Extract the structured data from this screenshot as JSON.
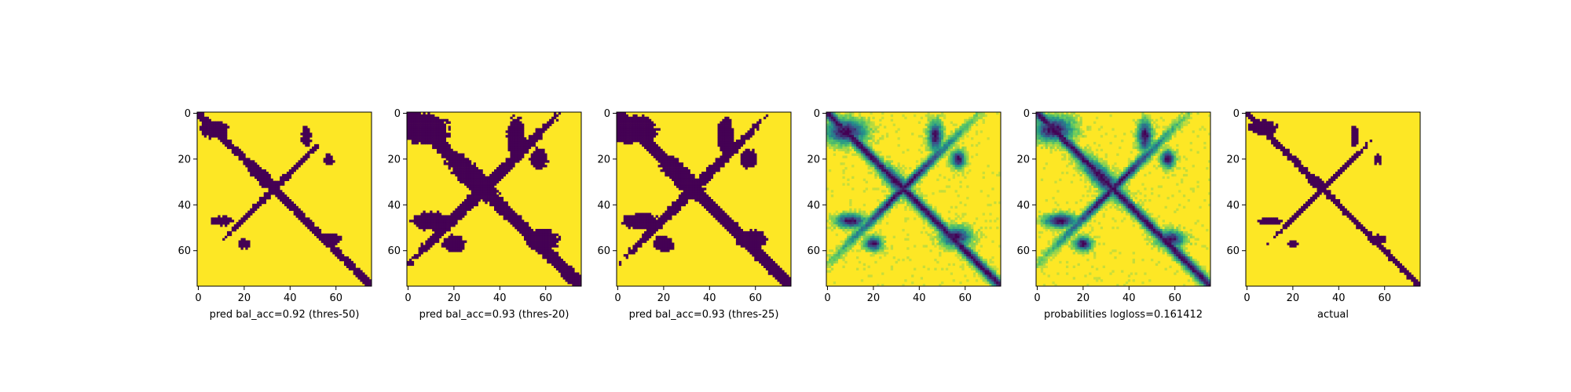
{
  "chart_data": [
    {
      "type": "heatmap",
      "xlabel": "pred bal_acc=0.92 (thres-50)",
      "matrix_size": 76,
      "xticks": [
        0,
        20,
        40,
        60
      ],
      "yticks": [
        0,
        20,
        40,
        60
      ],
      "value_range": [
        0,
        1
      ],
      "colormap": "viridis",
      "binary": true,
      "threshold": 0.5,
      "diagonal_bandwidth": 2.6,
      "clusters": [
        {
          "cx": 7,
          "cy": 7,
          "rx": 7,
          "ry": 4.5
        },
        {
          "cx": 28,
          "cy": 28,
          "rx": 12,
          "ry": 3.2,
          "angle": 45
        },
        {
          "cx": 10,
          "cy": 47,
          "rx": 5.5,
          "ry": 2.4
        },
        {
          "cx": 47,
          "cy": 10,
          "rx": 2.4,
          "ry": 5.5
        },
        {
          "cx": 58,
          "cy": 55,
          "rx": 5,
          "ry": 3
        },
        {
          "cx": 20,
          "cy": 57,
          "rx": 3,
          "ry": 2.5
        },
        {
          "cx": 57,
          "cy": 20,
          "rx": 2.5,
          "ry": 3
        }
      ],
      "noise_seed": 11
    },
    {
      "type": "heatmap",
      "xlabel": "pred bal_acc=0.93 (thres-20)",
      "matrix_size": 76,
      "xticks": [
        0,
        20,
        40,
        60
      ],
      "yticks": [
        0,
        20,
        40,
        60
      ],
      "value_range": [
        0,
        1
      ],
      "colormap": "viridis",
      "binary": true,
      "threshold": 0.2,
      "diagonal_bandwidth": 3.1,
      "clusters": [
        {
          "cx": 7,
          "cy": 7,
          "rx": 8,
          "ry": 5
        },
        {
          "cx": 28,
          "cy": 28,
          "rx": 13,
          "ry": 3.6,
          "angle": 45
        },
        {
          "cx": 10,
          "cy": 47,
          "rx": 6.5,
          "ry": 2.8
        },
        {
          "cx": 47,
          "cy": 10,
          "rx": 2.8,
          "ry": 6.5
        },
        {
          "cx": 58,
          "cy": 55,
          "rx": 5.5,
          "ry": 3.4
        },
        {
          "cx": 20,
          "cy": 57,
          "rx": 3.5,
          "ry": 2.8
        },
        {
          "cx": 57,
          "cy": 20,
          "rx": 2.8,
          "ry": 3.5
        }
      ],
      "noise_seed": 23
    },
    {
      "type": "heatmap",
      "xlabel": "pred bal_acc=0.93 (thres-25)",
      "matrix_size": 76,
      "xticks": [
        0,
        20,
        40,
        60
      ],
      "yticks": [
        0,
        20,
        40,
        60
      ],
      "value_range": [
        0,
        1
      ],
      "colormap": "viridis",
      "binary": true,
      "threshold": 0.25,
      "diagonal_bandwidth": 3.0,
      "clusters": [
        {
          "cx": 7,
          "cy": 7,
          "rx": 8,
          "ry": 5
        },
        {
          "cx": 28,
          "cy": 28,
          "rx": 13,
          "ry": 3.5,
          "angle": 45
        },
        {
          "cx": 10,
          "cy": 47,
          "rx": 6.5,
          "ry": 2.8
        },
        {
          "cx": 47,
          "cy": 10,
          "rx": 2.8,
          "ry": 6.5
        },
        {
          "cx": 58,
          "cy": 55,
          "rx": 5.5,
          "ry": 3.4
        },
        {
          "cx": 20,
          "cy": 57,
          "rx": 3.5,
          "ry": 2.8
        },
        {
          "cx": 57,
          "cy": 20,
          "rx": 2.8,
          "ry": 3.5
        }
      ],
      "noise_seed": 37
    },
    {
      "type": "heatmap",
      "xlabel": "",
      "matrix_size": 76,
      "xticks": [
        0,
        20,
        40,
        60
      ],
      "yticks": [
        0,
        20,
        40,
        60
      ],
      "value_range": [
        0,
        1
      ],
      "colormap": "viridis",
      "binary": false,
      "diagonal_bandwidth": 3.0,
      "clusters": [
        {
          "cx": 8,
          "cy": 8,
          "rx": 8,
          "ry": 5
        },
        {
          "cx": 30,
          "cy": 30,
          "rx": 10,
          "ry": 3,
          "angle": 45
        },
        {
          "cx": 10,
          "cy": 47,
          "rx": 6,
          "ry": 2.8
        },
        {
          "cx": 47,
          "cy": 10,
          "rx": 2.8,
          "ry": 6
        },
        {
          "cx": 56,
          "cy": 54,
          "rx": 6,
          "ry": 4
        },
        {
          "cx": 20,
          "cy": 57,
          "rx": 3.5,
          "ry": 2.8
        },
        {
          "cx": 57,
          "cy": 20,
          "rx": 2.8,
          "ry": 3.5
        }
      ],
      "noise_seed": 51
    },
    {
      "type": "heatmap",
      "xlabel": "probabilities logloss=0.161412",
      "matrix_size": 76,
      "xticks": [
        0,
        20,
        40,
        60
      ],
      "yticks": [
        0,
        20,
        40,
        60
      ],
      "value_range": [
        0,
        1
      ],
      "colormap": "viridis",
      "binary": false,
      "diagonal_bandwidth": 3.0,
      "clusters": [
        {
          "cx": 7,
          "cy": 7,
          "rx": 8,
          "ry": 5
        },
        {
          "cx": 28,
          "cy": 28,
          "rx": 13,
          "ry": 3.5,
          "angle": 45
        },
        {
          "cx": 10,
          "cy": 47,
          "rx": 6.5,
          "ry": 2.8
        },
        {
          "cx": 47,
          "cy": 10,
          "rx": 2.8,
          "ry": 6.5
        },
        {
          "cx": 58,
          "cy": 55,
          "rx": 5.5,
          "ry": 3.4
        },
        {
          "cx": 20,
          "cy": 57,
          "rx": 3.5,
          "ry": 2.8
        },
        {
          "cx": 57,
          "cy": 20,
          "rx": 2.8,
          "ry": 3.5
        }
      ],
      "noise_seed": 67
    },
    {
      "type": "heatmap",
      "xlabel": "actual",
      "matrix_size": 76,
      "xticks": [
        0,
        20,
        40,
        60
      ],
      "yticks": [
        0,
        20,
        40,
        60
      ],
      "value_range": [
        0,
        1
      ],
      "colormap": "viridis",
      "binary": true,
      "threshold": 0.5,
      "diagonal_bandwidth": 2.2,
      "clusters": [
        {
          "cx": 7,
          "cy": 6,
          "rx": 7,
          "ry": 3.5
        },
        {
          "cx": 30,
          "cy": 30,
          "rx": 6,
          "ry": 2.6,
          "angle": 45
        },
        {
          "cx": 10,
          "cy": 47,
          "rx": 5.5,
          "ry": 1.8
        },
        {
          "cx": 47,
          "cy": 10,
          "rx": 1.8,
          "ry": 5.5
        },
        {
          "cx": 57,
          "cy": 55,
          "rx": 4.5,
          "ry": 2.4
        },
        {
          "cx": 20,
          "cy": 57,
          "rx": 2.5,
          "ry": 2
        },
        {
          "cx": 57,
          "cy": 20,
          "rx": 2,
          "ry": 2.5
        }
      ],
      "noise_seed": 89
    }
  ]
}
